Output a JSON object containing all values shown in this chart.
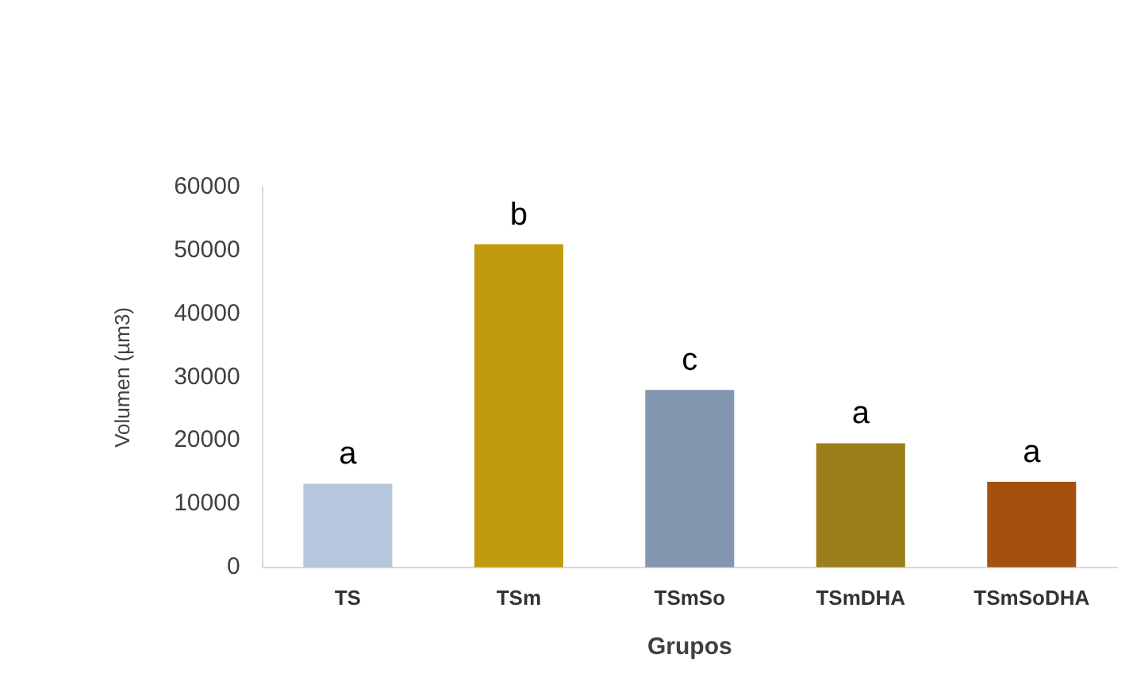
{
  "chart_data": {
    "type": "bar",
    "xlabel": "Grupos",
    "ylabel": "Volumen (µm3)",
    "categories": [
      "TS",
      "TSm",
      "TSmSo",
      "TSmDHA",
      "TSmSoDHA"
    ],
    "values": [
      13200,
      51000,
      28000,
      19600,
      13500
    ],
    "colors": [
      "#b4c7dc",
      "#c09a0a",
      "#8497b0",
      "#9b7f1a",
      "#a5500f"
    ],
    "ylim": [
      0,
      60000
    ],
    "yticks": [
      0,
      10000,
      20000,
      30000,
      40000,
      50000,
      60000
    ],
    "grid": false,
    "legend": false,
    "annotations": [
      {
        "text": "a",
        "x": "TS",
        "y": 13200
      },
      {
        "text": "b",
        "x": "TSm",
        "y": 51000
      },
      {
        "text": "c",
        "x": "TSmSo",
        "y": 28000
      },
      {
        "text": "a",
        "x": "TSmDHA",
        "y": 19600
      },
      {
        "text": "a",
        "x": "TSmSoDHA",
        "y": 13500
      }
    ]
  }
}
